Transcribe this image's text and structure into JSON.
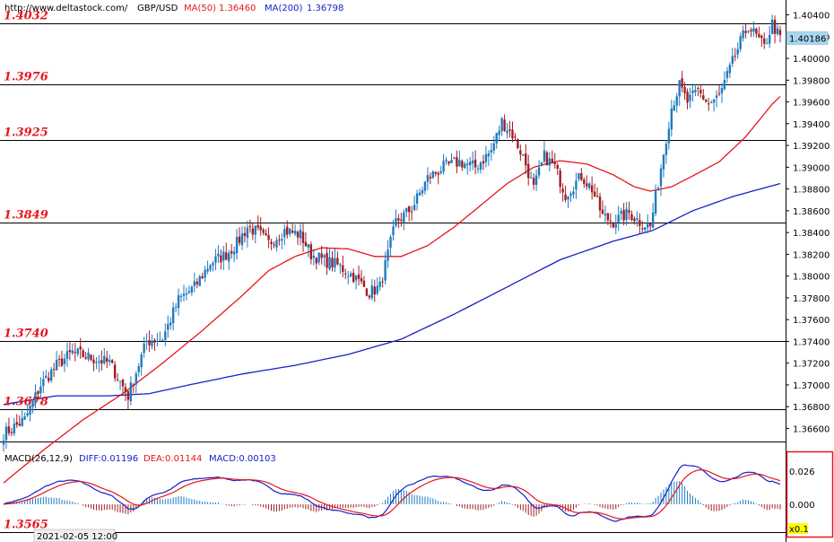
{
  "header": {
    "url": "http://www.deltastock.com/",
    "symbol": "GBP/USD",
    "ma50_label": "MA(50)",
    "ma50_value": "1.36460",
    "ma200_label": "MA(200)",
    "ma200_value": "1.36798"
  },
  "colors": {
    "up_candle": "#1f7bbf",
    "down_candle": "#a01d24",
    "ma50": "#e8151b",
    "ma200": "#1620c8",
    "level_text": "#e8151b",
    "price_tag": "#a8d8f0"
  },
  "price_levels": [
    "1.4032",
    "1.3976",
    "1.3925",
    "1.3849",
    "1.3740",
    "1.3678",
    "1.3565"
  ],
  "price_levels_values": [
    1.4032,
    1.3976,
    1.3925,
    1.3849,
    1.374,
    1.3678,
    1.3565
  ],
  "current_price": "1.40186",
  "current_price_value": 1.40186,
  "price_ticks": [
    "1.40400",
    "1.40200",
    "1.40000",
    "1.39800",
    "1.39600",
    "1.39400",
    "1.39200",
    "1.39000",
    "1.38800",
    "1.38600",
    "1.38400",
    "1.38200",
    "1.38000",
    "1.37800",
    "1.37600",
    "1.37400",
    "1.37200",
    "1.37000",
    "1.36800",
    "1.36600"
  ],
  "macd": {
    "title": "MACD(26,12,9)",
    "diff_label": "DIFF:0.01196",
    "dea_label": "DEA:0.01144",
    "macd_label": "MACD:0.00103",
    "ticks": [
      "0.026",
      "0.000"
    ],
    "scale_label": "x0.1"
  },
  "time_label": "2021-02-05 12:00",
  "chart_data": {
    "type": "candlestick",
    "ylim": [
      1.3648,
      1.4052
    ],
    "anchors": [
      [
        0,
        1.3655
      ],
      [
        8,
        1.3668
      ],
      [
        14,
        1.37
      ],
      [
        20,
        1.3718
      ],
      [
        26,
        1.373
      ],
      [
        34,
        1.3724
      ],
      [
        40,
        1.372
      ],
      [
        47,
        1.369
      ],
      [
        50,
        1.3712
      ],
      [
        54,
        1.374
      ],
      [
        60,
        1.3743
      ],
      [
        66,
        1.3778
      ],
      [
        72,
        1.379
      ],
      [
        78,
        1.3812
      ],
      [
        84,
        1.382
      ],
      [
        88,
        1.383
      ],
      [
        92,
        1.3845
      ],
      [
        96,
        1.384
      ],
      [
        100,
        1.383
      ],
      [
        106,
        1.3842
      ],
      [
        112,
        1.3838
      ],
      [
        116,
        1.382
      ],
      [
        120,
        1.3815
      ],
      [
        126,
        1.381
      ],
      [
        132,
        1.38
      ],
      [
        138,
        1.3785
      ],
      [
        142,
        1.379
      ],
      [
        148,
        1.385
      ],
      [
        154,
        1.3862
      ],
      [
        160,
        1.389
      ],
      [
        166,
        1.39
      ],
      [
        172,
        1.3905
      ],
      [
        178,
        1.39
      ],
      [
        184,
        1.3915
      ],
      [
        188,
        1.3942
      ],
      [
        192,
        1.393
      ],
      [
        196,
        1.391
      ],
      [
        200,
        1.388
      ],
      [
        204,
        1.391
      ],
      [
        208,
        1.39
      ],
      [
        212,
        1.3875
      ],
      [
        218,
        1.3892
      ],
      [
        222,
        1.388
      ],
      [
        226,
        1.3855
      ],
      [
        230,
        1.385
      ],
      [
        236,
        1.3858
      ],
      [
        240,
        1.385
      ],
      [
        244,
        1.3845
      ],
      [
        248,
        1.39
      ],
      [
        252,
        1.3955
      ],
      [
        255,
        1.3975
      ],
      [
        258,
        1.396
      ],
      [
        262,
        1.397
      ],
      [
        266,
        1.3958
      ],
      [
        270,
        1.3965
      ],
      [
        274,
        1.399
      ],
      [
        278,
        1.4015
      ],
      [
        281,
        1.403
      ],
      [
        284,
        1.402
      ],
      [
        287,
        1.401
      ],
      [
        290,
        1.4032
      ],
      [
        293,
        1.4018
      ]
    ],
    "ma50_anchors": [
      [
        0,
        1.361
      ],
      [
        15,
        1.364
      ],
      [
        30,
        1.3668
      ],
      [
        45,
        1.3692
      ],
      [
        60,
        1.372
      ],
      [
        75,
        1.375
      ],
      [
        90,
        1.3782
      ],
      [
        100,
        1.3805
      ],
      [
        110,
        1.3818
      ],
      [
        120,
        1.3826
      ],
      [
        130,
        1.3825
      ],
      [
        140,
        1.3818
      ],
      [
        150,
        1.3818
      ],
      [
        160,
        1.3828
      ],
      [
        170,
        1.3845
      ],
      [
        180,
        1.3865
      ],
      [
        190,
        1.3885
      ],
      [
        200,
        1.39
      ],
      [
        210,
        1.3906
      ],
      [
        220,
        1.3903
      ],
      [
        230,
        1.3893
      ],
      [
        238,
        1.3882
      ],
      [
        244,
        1.3878
      ],
      [
        252,
        1.3882
      ],
      [
        260,
        1.3892
      ],
      [
        270,
        1.3905
      ],
      [
        280,
        1.3928
      ],
      [
        290,
        1.3958
      ],
      [
        293,
        1.3965
      ]
    ],
    "ma200_anchors": [
      [
        0,
        1.3682
      ],
      [
        20,
        1.369
      ],
      [
        40,
        1.369
      ],
      [
        55,
        1.3692
      ],
      [
        70,
        1.37
      ],
      [
        90,
        1.371
      ],
      [
        110,
        1.3718
      ],
      [
        130,
        1.3728
      ],
      [
        150,
        1.3742
      ],
      [
        170,
        1.3765
      ],
      [
        190,
        1.379
      ],
      [
        210,
        1.3815
      ],
      [
        230,
        1.3832
      ],
      [
        245,
        1.3842
      ],
      [
        260,
        1.386
      ],
      [
        275,
        1.3873
      ],
      [
        293,
        1.3885
      ]
    ]
  }
}
